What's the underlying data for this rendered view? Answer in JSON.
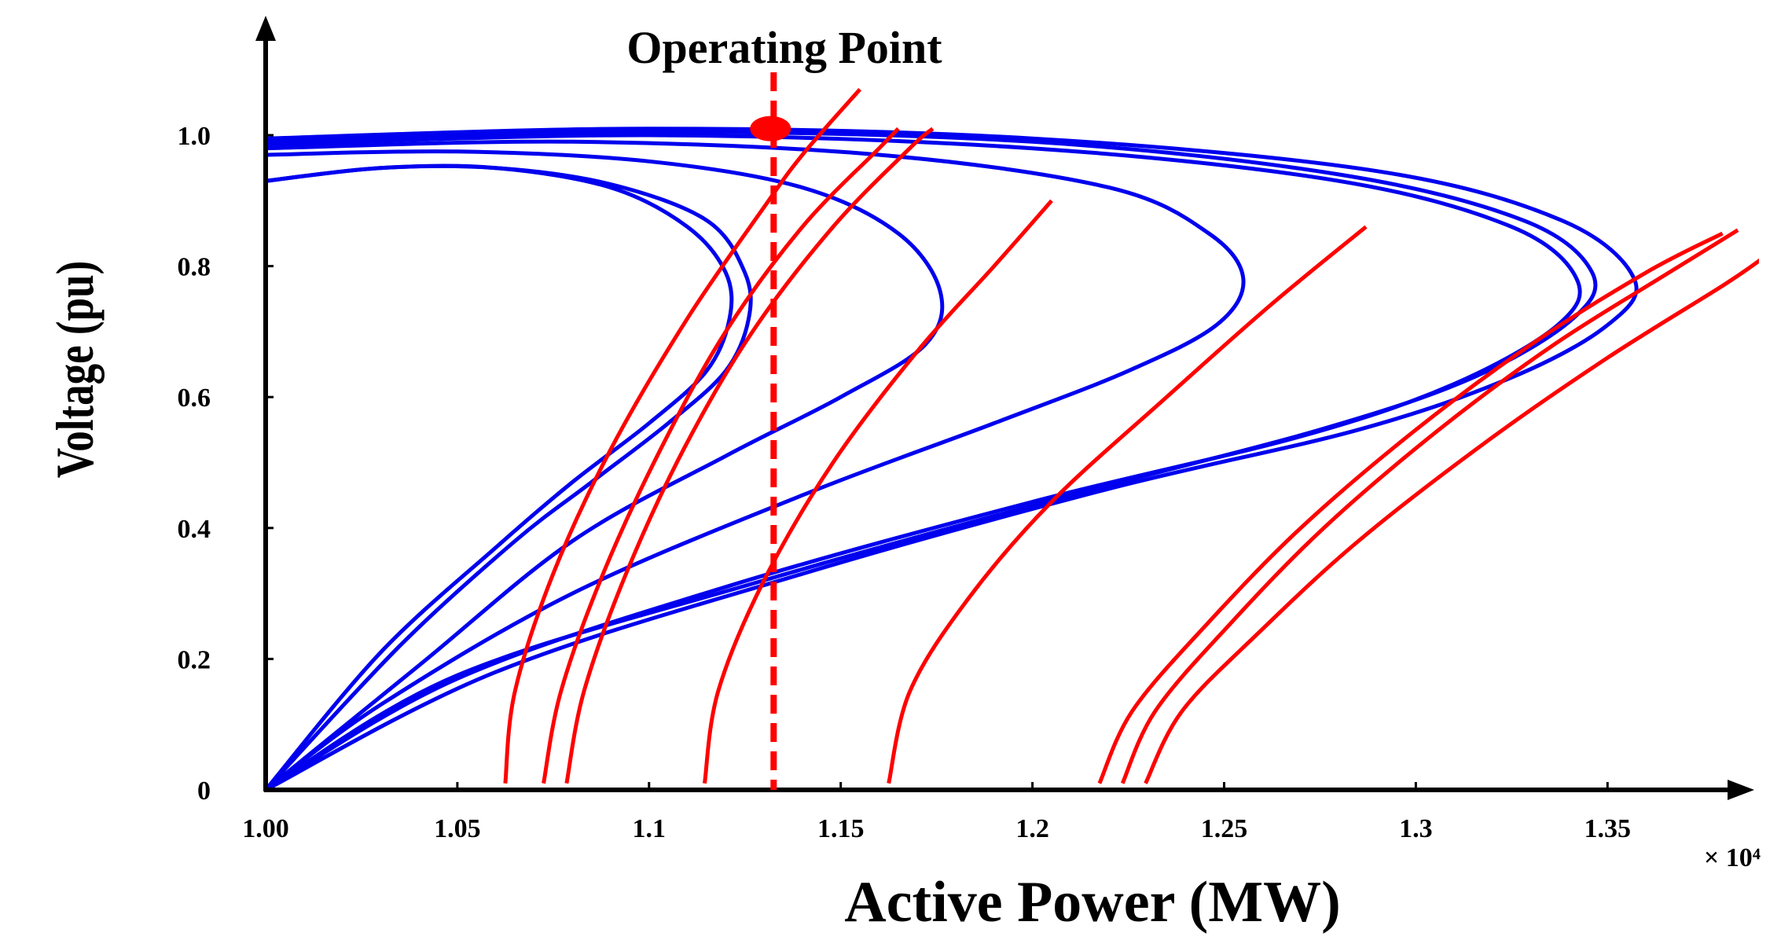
{
  "chart_data": {
    "type": "line",
    "title": "",
    "xlabel": "Active Power (MW)",
    "ylabel": "Voltage (pu)",
    "x_multiplier_label": "× 10⁴",
    "xlim": [
      1.0,
      1.385
    ],
    "ylim": [
      0,
      1.1
    ],
    "x_ticks": [
      {
        "value": 1.0,
        "label": "1.00"
      },
      {
        "value": 1.05,
        "label": "1.05"
      },
      {
        "value": 1.1,
        "label": "1.1"
      },
      {
        "value": 1.15,
        "label": "1.15"
      },
      {
        "value": 1.2,
        "label": "1.2"
      },
      {
        "value": 1.25,
        "label": "1.25"
      },
      {
        "value": 1.3,
        "label": "1.3"
      },
      {
        "value": 1.35,
        "label": "1.35"
      }
    ],
    "y_ticks": [
      {
        "value": 0,
        "label": "0"
      },
      {
        "value": 0.2,
        "label": "0.2"
      },
      {
        "value": 0.4,
        "label": "0.4"
      },
      {
        "value": 0.6,
        "label": "0.6"
      },
      {
        "value": 0.8,
        "label": "0.8"
      },
      {
        "value": 1.0,
        "label": "1.0"
      }
    ],
    "grid": false,
    "colors": {
      "pv": "#0000ee",
      "load": "#ff0000",
      "axis": "#000000"
    },
    "operating_point": {
      "label": "Operating Point",
      "x": 1.1325,
      "y": 1.01
    },
    "pv_curves": [
      [
        [
          1.0,
          0.93
        ],
        [
          1.03,
          0.95
        ],
        [
          1.06,
          0.95
        ],
        [
          1.09,
          0.92
        ],
        [
          1.11,
          0.86
        ],
        [
          1.12,
          0.79
        ],
        [
          1.121,
          0.72
        ],
        [
          1.115,
          0.64
        ],
        [
          1.1,
          0.56
        ],
        [
          1.08,
          0.47
        ],
        [
          1.06,
          0.37
        ],
        [
          1.03,
          0.21
        ],
        [
          1.0,
          0.0
        ]
      ],
      [
        [
          1.0,
          0.93
        ],
        [
          1.03,
          0.95
        ],
        [
          1.06,
          0.95
        ],
        [
          1.09,
          0.925
        ],
        [
          1.115,
          0.87
        ],
        [
          1.125,
          0.79
        ],
        [
          1.126,
          0.72
        ],
        [
          1.12,
          0.64
        ],
        [
          1.105,
          0.56
        ],
        [
          1.085,
          0.47
        ],
        [
          1.065,
          0.38
        ],
        [
          1.035,
          0.22
        ],
        [
          1.0,
          0.0
        ]
      ],
      [
        [
          1.0,
          0.97
        ],
        [
          1.05,
          0.975
        ],
        [
          1.1,
          0.96
        ],
        [
          1.14,
          0.92
        ],
        [
          1.165,
          0.85
        ],
        [
          1.176,
          0.76
        ],
        [
          1.172,
          0.68
        ],
        [
          1.15,
          0.6
        ],
        [
          1.12,
          0.51
        ],
        [
          1.08,
          0.38
        ],
        [
          1.04,
          0.19
        ],
        [
          1.0,
          0.0
        ]
      ],
      [
        [
          1.0,
          0.98
        ],
        [
          1.08,
          0.99
        ],
        [
          1.16,
          0.97
        ],
        [
          1.22,
          0.92
        ],
        [
          1.246,
          0.85
        ],
        [
          1.255,
          0.78
        ],
        [
          1.248,
          0.71
        ],
        [
          1.225,
          0.64
        ],
        [
          1.19,
          0.56
        ],
        [
          1.14,
          0.45
        ],
        [
          1.08,
          0.3
        ],
        [
          1.03,
          0.13
        ],
        [
          1.0,
          0.0
        ]
      ],
      [
        [
          1.0,
          0.985
        ],
        [
          1.1,
          1.0
        ],
        [
          1.2,
          0.98
        ],
        [
          1.28,
          0.93
        ],
        [
          1.325,
          0.86
        ],
        [
          1.342,
          0.78
        ],
        [
          1.337,
          0.71
        ],
        [
          1.31,
          0.62
        ],
        [
          1.27,
          0.54
        ],
        [
          1.2,
          0.44
        ],
        [
          1.12,
          0.31
        ],
        [
          1.05,
          0.17
        ],
        [
          1.0,
          0.0
        ]
      ],
      [
        [
          1.0,
          0.99
        ],
        [
          1.1,
          1.005
        ],
        [
          1.2,
          0.99
        ],
        [
          1.28,
          0.94
        ],
        [
          1.328,
          0.87
        ],
        [
          1.346,
          0.79
        ],
        [
          1.341,
          0.72
        ],
        [
          1.315,
          0.63
        ],
        [
          1.275,
          0.55
        ],
        [
          1.21,
          0.45
        ],
        [
          1.13,
          0.32
        ],
        [
          1.05,
          0.175
        ],
        [
          1.0,
          0.0
        ]
      ],
      [
        [
          1.0,
          0.995
        ],
        [
          1.1,
          1.01
        ],
        [
          1.2,
          0.995
        ],
        [
          1.29,
          0.945
        ],
        [
          1.338,
          0.87
        ],
        [
          1.357,
          0.78
        ],
        [
          1.35,
          0.71
        ],
        [
          1.325,
          0.63
        ],
        [
          1.285,
          0.55
        ],
        [
          1.22,
          0.46
        ],
        [
          1.14,
          0.33
        ],
        [
          1.06,
          0.18
        ],
        [
          1.0,
          0.0
        ]
      ]
    ],
    "load_curves": [
      [
        [
          1.0625,
          0.01
        ],
        [
          1.065,
          0.15
        ],
        [
          1.075,
          0.33
        ],
        [
          1.09,
          0.52
        ],
        [
          1.11,
          0.72
        ],
        [
          1.13,
          0.89
        ],
        [
          1.14,
          0.97
        ],
        [
          1.155,
          1.07
        ]
      ],
      [
        [
          1.0725,
          0.01
        ],
        [
          1.077,
          0.15
        ],
        [
          1.088,
          0.33
        ],
        [
          1.103,
          0.52
        ],
        [
          1.12,
          0.7
        ],
        [
          1.14,
          0.86
        ],
        [
          1.16,
          0.98
        ],
        [
          1.165,
          1.01
        ]
      ],
      [
        [
          1.0785,
          0.01
        ],
        [
          1.083,
          0.15
        ],
        [
          1.094,
          0.33
        ],
        [
          1.109,
          0.52
        ],
        [
          1.127,
          0.7
        ],
        [
          1.148,
          0.86
        ],
        [
          1.168,
          0.98
        ],
        [
          1.174,
          1.01
        ]
      ],
      [
        [
          1.1145,
          0.01
        ],
        [
          1.118,
          0.15
        ],
        [
          1.13,
          0.32
        ],
        [
          1.148,
          0.5
        ],
        [
          1.17,
          0.67
        ],
        [
          1.19,
          0.8
        ],
        [
          1.205,
          0.9
        ]
      ],
      [
        [
          1.1625,
          0.01
        ],
        [
          1.168,
          0.15
        ],
        [
          1.183,
          0.29
        ],
        [
          1.205,
          0.44
        ],
        [
          1.235,
          0.6
        ],
        [
          1.262,
          0.74
        ],
        [
          1.287,
          0.86
        ]
      ],
      [
        [
          1.2175,
          0.01
        ],
        [
          1.226,
          0.12
        ],
        [
          1.245,
          0.25
        ],
        [
          1.27,
          0.4
        ],
        [
          1.3,
          0.55
        ],
        [
          1.33,
          0.68
        ],
        [
          1.36,
          0.79
        ],
        [
          1.38,
          0.85
        ]
      ],
      [
        [
          1.2235,
          0.01
        ],
        [
          1.232,
          0.12
        ],
        [
          1.251,
          0.25
        ],
        [
          1.276,
          0.4
        ],
        [
          1.306,
          0.55
        ],
        [
          1.336,
          0.68
        ],
        [
          1.366,
          0.79
        ],
        [
          1.384,
          0.855
        ]
      ],
      [
        [
          1.2295,
          0.01
        ],
        [
          1.239,
          0.12
        ],
        [
          1.259,
          0.24
        ],
        [
          1.285,
          0.38
        ],
        [
          1.318,
          0.53
        ],
        [
          1.35,
          0.66
        ],
        [
          1.38,
          0.77
        ],
        [
          1.39,
          0.81
        ]
      ]
    ]
  }
}
